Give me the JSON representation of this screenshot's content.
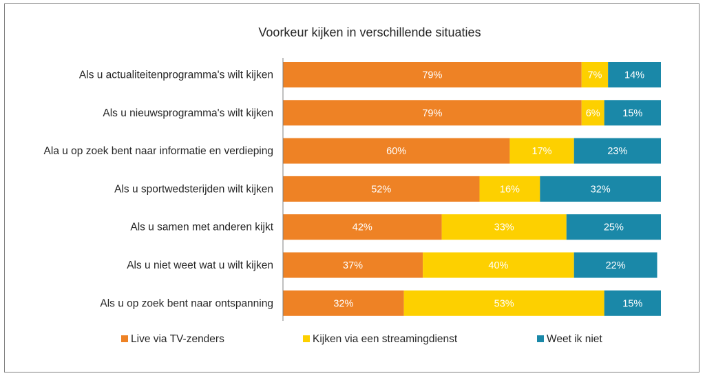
{
  "chart_data": {
    "type": "bar",
    "orientation": "horizontal",
    "stacked": true,
    "normalized_percent": true,
    "title": "Voorkeur kijken in verschillende situaties",
    "xlabel": "",
    "ylabel": "",
    "xlim": [
      0,
      100
    ],
    "grid": false,
    "legend_position": "bottom",
    "categories": [
      "Als u actualiteitenprogramma's wilt kijken",
      "Als u nieuwsprogramma's wilt kijken",
      "Ala u op zoek bent naar informatie en verdieping",
      "Als u sportwedsterijden wilt kijken",
      "Als u samen met anderen kijkt",
      "Als u niet weet wat u wilt kijken",
      "Als u op zoek bent naar ontspanning"
    ],
    "series": [
      {
        "name": "Live via TV-zenders",
        "color": "#ee8225",
        "values": [
          79,
          79,
          60,
          52,
          42,
          37,
          32
        ],
        "labels": [
          "79%",
          "79%",
          "60%",
          "52%",
          "42%",
          "37%",
          "32%"
        ]
      },
      {
        "name": "Kijken via een streamingdienst",
        "color": "#fdd000",
        "values": [
          7,
          6,
          17,
          16,
          33,
          40,
          53
        ],
        "labels": [
          "7%",
          "6%",
          "17%",
          "16%",
          "33%",
          "40%",
          "53%"
        ]
      },
      {
        "name": "Weet ik niet",
        "color": "#1a88a8",
        "values": [
          14,
          15,
          23,
          32,
          25,
          22,
          15
        ],
        "labels": [
          "14%",
          "15%",
          "23%",
          "32%",
          "25%",
          "22%",
          "15%"
        ]
      }
    ]
  }
}
